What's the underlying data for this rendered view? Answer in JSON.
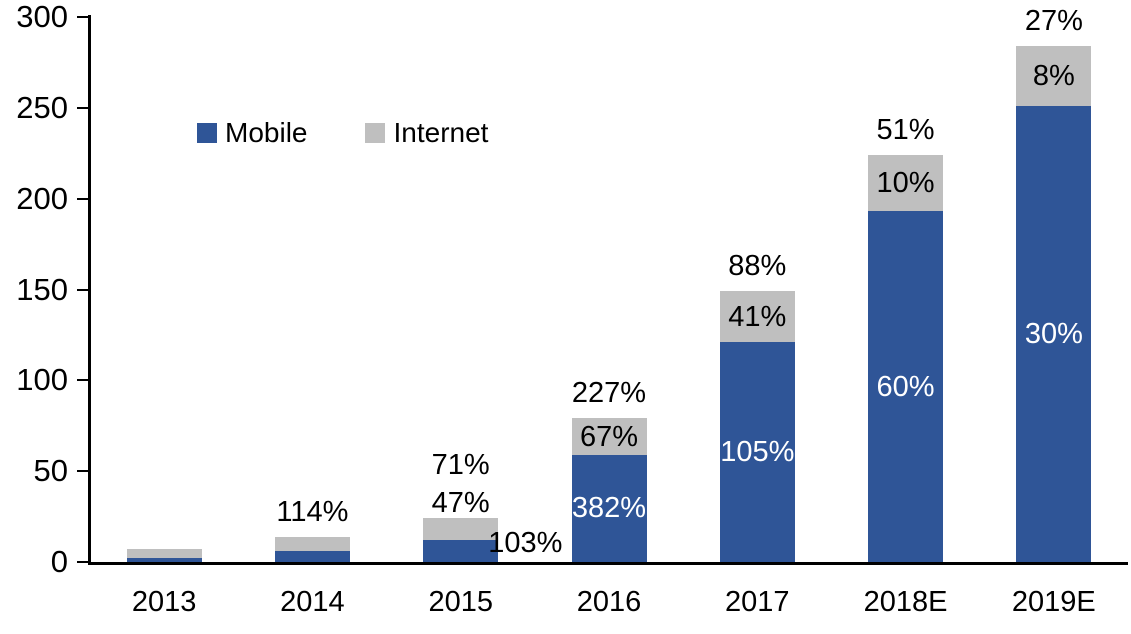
{
  "chart_data": {
    "type": "bar",
    "stacked": true,
    "title": "",
    "categories": [
      "2013",
      "2014",
      "2015",
      "2016",
      "2017",
      "2018E",
      "2019E"
    ],
    "series": [
      {
        "name": "Mobile",
        "color": "#2F5597",
        "values": [
          2,
          6,
          12,
          59,
          121,
          193,
          251
        ],
        "growth_labels": [
          "",
          "",
          "103%",
          "382%",
          "105%",
          "60%",
          "30%"
        ]
      },
      {
        "name": "Internet",
        "color": "#BFBFBF",
        "values": [
          5,
          8,
          12,
          20,
          28,
          31,
          33
        ],
        "growth_labels": [
          "",
          "",
          "47%",
          "67%",
          "41%",
          "10%",
          "8%"
        ]
      }
    ],
    "total_growth_labels": [
      "",
      "114%",
      "71%",
      "227%",
      "88%",
      "51%",
      "27%"
    ],
    "ylim": [
      0,
      300
    ],
    "yticks": [
      0,
      50,
      100,
      150,
      200,
      250,
      300
    ],
    "legend": {
      "entries": [
        "Mobile",
        "Internet"
      ],
      "position": "top-left-inside"
    },
    "grid": false,
    "xlabel": "",
    "ylabel": ""
  },
  "colors": {
    "mobile_bar": "#2F5597",
    "internet_bar": "#BFBFBF",
    "axis": "#000000",
    "background": "#FFFFFF",
    "inside_mobile_label": "#FFFFFF",
    "text": "#000000"
  }
}
